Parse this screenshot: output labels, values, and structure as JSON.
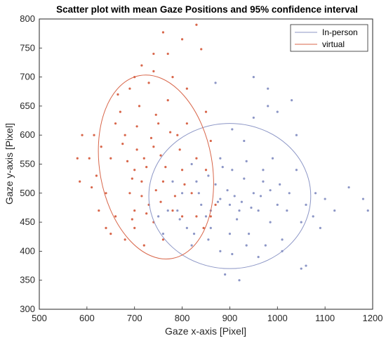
{
  "chart_data": {
    "type": "scatter",
    "title": "Scatter plot with mean Gaze Positions and 95% confidence interval",
    "xlabel": "Gaze x-axis [Pixel]",
    "ylabel": "Gaze y-axis [Pixel]",
    "xlim": [
      500,
      1200
    ],
    "ylim": [
      300,
      800
    ],
    "xticks": [
      500,
      600,
      700,
      800,
      900,
      1000,
      1100,
      1200
    ],
    "yticks": [
      300,
      350,
      400,
      450,
      500,
      550,
      600,
      650,
      700,
      750,
      800
    ],
    "grid": false,
    "legend_position": "top-right",
    "series": [
      {
        "name": "In-person",
        "color": "#8c96c6",
        "mean": [
          900,
          495
        ],
        "confidence_ellipse": {
          "level": "95%",
          "center": [
            900,
            495
          ],
          "rx": 170,
          "ry": 125,
          "rotation_deg": 0
        },
        "points": [
          [
            900,
            480
          ],
          [
            920,
            470
          ],
          [
            880,
            490
          ],
          [
            950,
            500
          ],
          [
            850,
            460
          ],
          [
            970,
            520
          ],
          [
            1000,
            480
          ],
          [
            830,
            520
          ],
          [
            860,
            440
          ],
          [
            940,
            430
          ],
          [
            1050,
            450
          ],
          [
            1080,
            500
          ],
          [
            790,
            470
          ],
          [
            760,
            430
          ],
          [
            820,
            410
          ],
          [
            880,
            400
          ],
          [
            960,
            390
          ],
          [
            1010,
            420
          ],
          [
            1040,
            540
          ],
          [
            990,
            560
          ],
          [
            930,
            590
          ],
          [
            880,
            560
          ],
          [
            820,
            550
          ],
          [
            800,
            500
          ],
          [
            780,
            520
          ],
          [
            900,
            430
          ],
          [
            915,
            455
          ],
          [
            895,
            505
          ],
          [
            870,
            515
          ],
          [
            930,
            525
          ],
          [
            960,
            470
          ],
          [
            985,
            450
          ],
          [
            1020,
            470
          ],
          [
            1060,
            480
          ],
          [
            1100,
            490
          ],
          [
            1120,
            470
          ],
          [
            1150,
            510
          ],
          [
            1180,
            490
          ],
          [
            1190,
            470
          ],
          [
            905,
            610
          ],
          [
            950,
            630
          ],
          [
            980,
            650
          ],
          [
            1000,
            640
          ],
          [
            1030,
            660
          ],
          [
            1050,
            370
          ],
          [
            1060,
            375
          ],
          [
            890,
            360
          ],
          [
            920,
            350
          ],
          [
            870,
            690
          ],
          [
            950,
            700
          ],
          [
            980,
            680
          ],
          [
            1040,
            600
          ],
          [
            840,
            480
          ],
          [
            810,
            440
          ],
          [
            770,
            470
          ],
          [
            750,
            460
          ],
          [
            860,
            470
          ],
          [
            875,
            485
          ],
          [
            910,
            495
          ],
          [
            925,
            485
          ],
          [
            945,
            475
          ],
          [
            965,
            495
          ],
          [
            985,
            505
          ],
          [
            1005,
            515
          ],
          [
            835,
            500
          ],
          [
            855,
            530
          ],
          [
            885,
            545
          ],
          [
            905,
            540
          ],
          [
            935,
            555
          ],
          [
            970,
            540
          ],
          [
            1025,
            500
          ],
          [
            1075,
            460
          ],
          [
            1090,
            440
          ],
          [
            1010,
            400
          ],
          [
            975,
            410
          ],
          [
            935,
            410
          ],
          [
            905,
            395
          ],
          [
            855,
            420
          ],
          [
            825,
            430
          ],
          [
            795,
            455
          ]
        ]
      },
      {
        "name": "virtual",
        "color": "#d8664a",
        "mean": [
          745,
          545
        ],
        "confidence_ellipse": {
          "level": "95%",
          "center": [
            745,
            545
          ],
          "rx": 118,
          "ry": 160,
          "rotation_deg": -10
        },
        "points": [
          [
            720,
            560
          ],
          [
            700,
            540
          ],
          [
            740,
            580
          ],
          [
            760,
            520
          ],
          [
            680,
            600
          ],
          [
            690,
            500
          ],
          [
            730,
            480
          ],
          [
            750,
            620
          ],
          [
            710,
            650
          ],
          [
            670,
            640
          ],
          [
            650,
            560
          ],
          [
            640,
            500
          ],
          [
            660,
            460
          ],
          [
            700,
            440
          ],
          [
            740,
            450
          ],
          [
            780,
            470
          ],
          [
            800,
            540
          ],
          [
            790,
            600
          ],
          [
            770,
            660
          ],
          [
            730,
            690
          ],
          [
            690,
            680
          ],
          [
            660,
            620
          ],
          [
            630,
            580
          ],
          [
            620,
            530
          ],
          [
            640,
            440
          ],
          [
            680,
            420
          ],
          [
            720,
            410
          ],
          [
            760,
            420
          ],
          [
            800,
            460
          ],
          [
            820,
            500
          ],
          [
            830,
            560
          ],
          [
            810,
            620
          ],
          [
            780,
            700
          ],
          [
            740,
            710
          ],
          [
            700,
            700
          ],
          [
            665,
            670
          ],
          [
            615,
            600
          ],
          [
            605,
            560
          ],
          [
            610,
            510
          ],
          [
            625,
            470
          ],
          [
            650,
            430
          ],
          [
            700,
            470
          ],
          [
            715,
            520
          ],
          [
            725,
            545
          ],
          [
            705,
            575
          ],
          [
            735,
            595
          ],
          [
            755,
            565
          ],
          [
            765,
            545
          ],
          [
            745,
            505
          ],
          [
            715,
            495
          ],
          [
            695,
            525
          ],
          [
            685,
            555
          ],
          [
            675,
            585
          ],
          [
            705,
            615
          ],
          [
            745,
            635
          ],
          [
            775,
            605
          ],
          [
            795,
            575
          ],
          [
            805,
            515
          ],
          [
            785,
            495
          ],
          [
            755,
            485
          ],
          [
            725,
            465
          ],
          [
            695,
            455
          ],
          [
            760,
            777
          ],
          [
            830,
            790
          ],
          [
            840,
            748
          ],
          [
            800,
            765
          ],
          [
            580,
            560
          ],
          [
            590,
            600
          ],
          [
            585,
            520
          ],
          [
            870,
            480
          ],
          [
            860,
            460
          ],
          [
            845,
            440
          ],
          [
            770,
            740
          ],
          [
            740,
            740
          ],
          [
            715,
            720
          ],
          [
            810,
            680
          ],
          [
            850,
            640
          ],
          [
            860,
            590
          ],
          [
            850,
            540
          ],
          [
            830,
            460
          ]
        ]
      }
    ]
  }
}
